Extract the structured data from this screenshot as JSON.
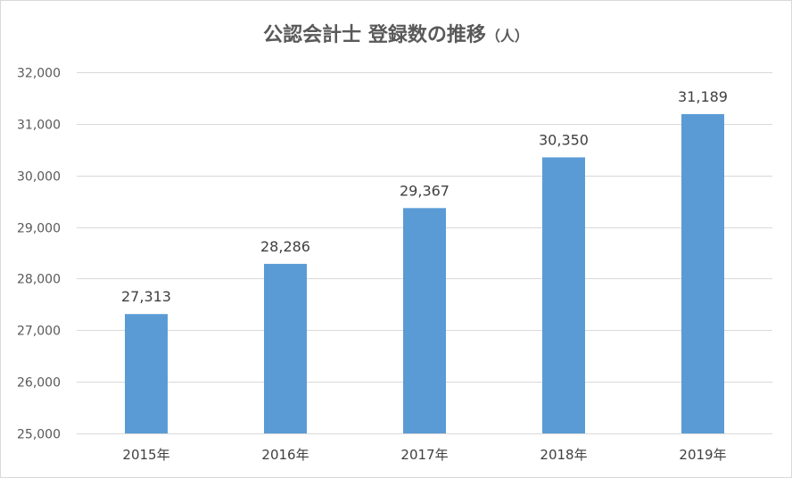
{
  "chart_data": {
    "type": "bar",
    "title": "公認会計士 登録数の推移",
    "title_unit": "（人）",
    "xlabel": "",
    "ylabel": "",
    "categories": [
      "2015年",
      "2016年",
      "2017年",
      "2018年",
      "2019年"
    ],
    "values": [
      27313,
      28286,
      29367,
      30350,
      31189
    ],
    "value_labels": [
      "27,313",
      "28,286",
      "29,367",
      "30,350",
      "31,189"
    ],
    "ylim": [
      25000,
      32000
    ],
    "yticks": [
      25000,
      26000,
      27000,
      28000,
      29000,
      30000,
      31000,
      32000
    ],
    "ytick_labels": [
      "25,000",
      "26,000",
      "27,000",
      "28,000",
      "29,000",
      "30,000",
      "31,000",
      "32,000"
    ],
    "grid": true,
    "legend": "none",
    "bar_color": "#5b9bd5"
  }
}
